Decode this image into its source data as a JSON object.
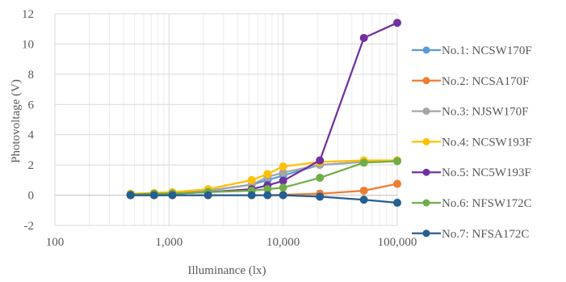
{
  "chart_data": {
    "type": "line",
    "x_scale": "log",
    "xlabel": "Illuminance (lx)",
    "ylabel": "Photovoltage (V)",
    "xlim": [
      100,
      100000
    ],
    "ylim": [
      -2,
      12
    ],
    "x_ticks": [
      100,
      1000,
      10000,
      100000
    ],
    "x_tick_labels": [
      "100",
      "1,000",
      "10,000",
      "100,000"
    ],
    "y_ticks": [
      -2,
      0,
      2,
      4,
      6,
      8,
      10,
      12
    ],
    "y_tick_labels": [
      "-2",
      "0",
      "2",
      "4",
      "6",
      "8",
      "10",
      "12"
    ],
    "grid": true,
    "minor_grid_x": true,
    "legend_position": "right",
    "x": [
      460,
      740,
      1070,
      2200,
      5300,
      7300,
      10000,
      21000,
      51000,
      100000
    ],
    "series": [
      {
        "name": "No.1: NCSW170F",
        "color": "#5b9bd5",
        "values": [
          0.05,
          0.1,
          0.15,
          0.3,
          0.7,
          1.0,
          1.3,
          2.0,
          2.2,
          2.3
        ]
      },
      {
        "name": "No.2: NCSA170F",
        "color": "#ed7d31",
        "values": [
          0.0,
          0.0,
          0.0,
          0.0,
          0.0,
          0.0,
          0.03,
          0.1,
          0.3,
          0.75
        ]
      },
      {
        "name": "No.3: NJSW170F",
        "color": "#a5a5a5",
        "values": [
          0.05,
          0.1,
          0.15,
          0.3,
          0.7,
          1.2,
          1.5,
          2.0,
          2.2,
          2.3
        ]
      },
      {
        "name": "No.4: NCSW193F",
        "color": "#ffc000",
        "values": [
          0.1,
          0.15,
          0.2,
          0.4,
          1.0,
          1.4,
          1.9,
          2.2,
          2.3,
          2.3
        ]
      },
      {
        "name": "No.5: NC5W193F",
        "color": "#7030a0",
        "values": [
          0.05,
          0.08,
          0.1,
          0.2,
          0.4,
          0.65,
          0.95,
          2.3,
          10.4,
          11.4
        ]
      },
      {
        "name": "No.6: NFSW172C",
        "color": "#70ad47",
        "values": [
          0.05,
          0.1,
          0.1,
          0.2,
          0.3,
          0.4,
          0.5,
          1.15,
          2.15,
          2.25
        ]
      },
      {
        "name": "No.7: NFSA172C",
        "color": "#255e91",
        "values": [
          0.0,
          0.0,
          0.0,
          0.0,
          0.0,
          0.0,
          0.0,
          -0.1,
          -0.3,
          -0.5
        ]
      }
    ]
  }
}
